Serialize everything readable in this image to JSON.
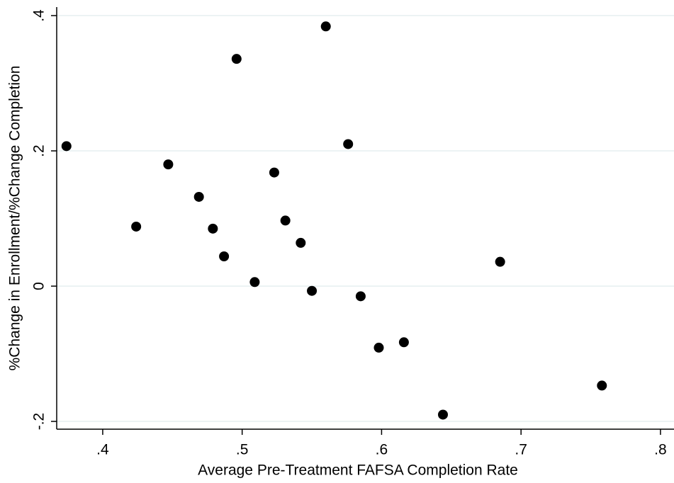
{
  "chart_data": {
    "type": "scatter",
    "x_label": "Average Pre-Treatment FAFSA Completion Rate",
    "y_label": "%Change in Enrollment/%Change Completion",
    "color": "#000000",
    "grid": true,
    "xlim": [
      0.367,
      0.8097
    ],
    "ylim": [
      -0.2115,
      0.4126
    ],
    "xticks": [
      {
        "value": 0.4,
        "label": ".4"
      },
      {
        "value": 0.5,
        "label": ".5"
      },
      {
        "value": 0.6,
        "label": ".6"
      },
      {
        "value": 0.7,
        "label": ".7"
      },
      {
        "value": 0.8,
        "label": ".8"
      }
    ],
    "yticks": [
      {
        "value": -0.2,
        "label": "-.2"
      },
      0,
      {
        "value": 0.2,
        "label": ".2"
      },
      {
        "value": 0.4,
        "label": ".4"
      }
    ],
    "x": [
      0.374,
      0.424,
      0.447,
      0.469,
      0.479,
      0.487,
      0.496,
      0.509,
      0.523,
      0.531,
      0.542,
      0.55,
      0.56,
      0.576,
      0.585,
      0.598,
      0.616,
      0.644,
      0.685,
      0.758
    ],
    "values": [
      0.207,
      0.088,
      0.18,
      0.132,
      0.085,
      0.044,
      0.336,
      0.006,
      0.168,
      0.097,
      0.064,
      -0.007,
      0.384,
      0.21,
      -0.015,
      -0.091,
      -0.083,
      -0.19,
      0.036,
      -0.147
    ]
  }
}
